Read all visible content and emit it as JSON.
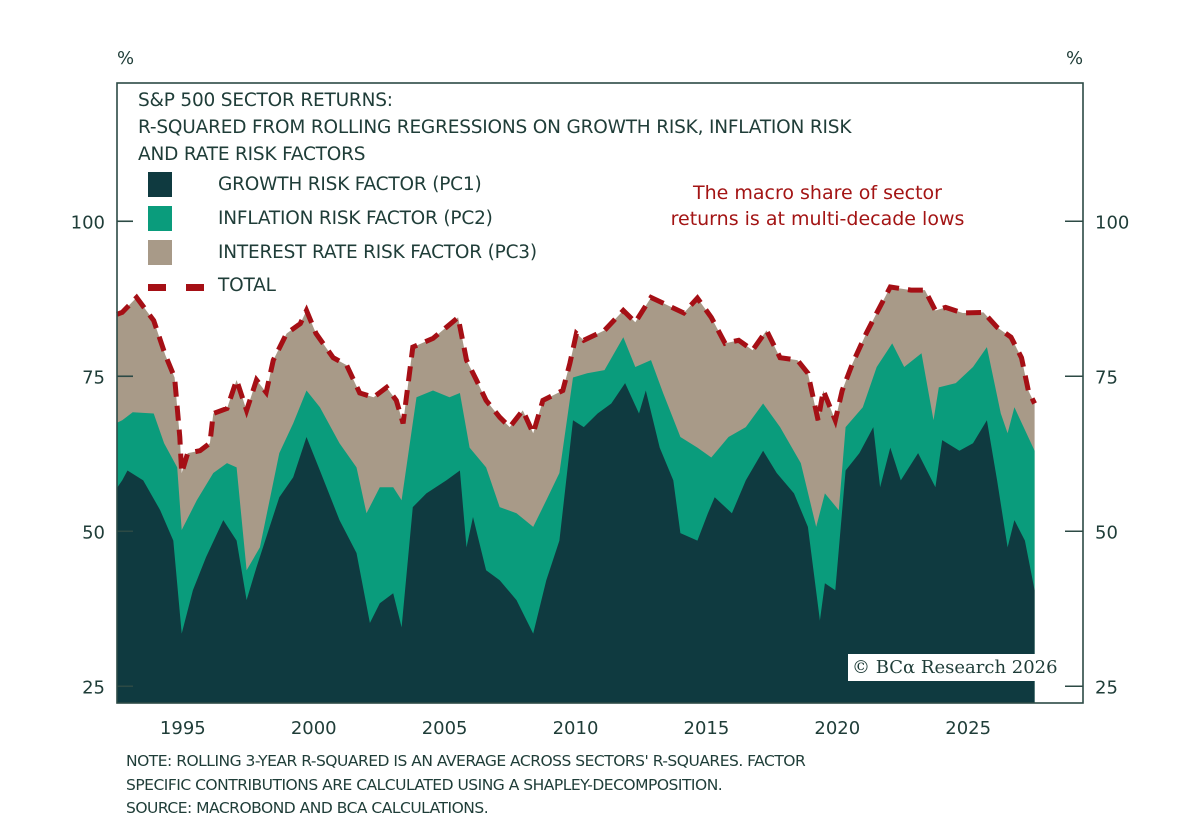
{
  "chart_data": {
    "type": "area",
    "stacked": true,
    "title_lines": [
      "S&P 500 SECTOR RETURNS:",
      "R-SQUARED FROM ROLLING REGRESSIONS ON GROWTH RISK, INFLATION RISK",
      "AND RATE RISK FACTORS"
    ],
    "ylabel_left": "%",
    "ylabel_right": "%",
    "ylim": [
      22.3,
      122.3
    ],
    "xlim": [
      1992.6,
      2029.5
    ],
    "yticks": [
      25,
      50,
      75,
      100
    ],
    "xticks": [
      1995,
      2000,
      2005,
      2010,
      2015,
      2020,
      2025
    ],
    "grid": false,
    "legend_placement": "top-left",
    "annotation": [
      "The macro share of sector",
      "returns is at multi-decade lows"
    ],
    "copyright": "© BCα Research 2026",
    "value_note": "points are [year, cumulative stacked level in %]",
    "series": [
      {
        "name": "GROWTH RISK FACTOR (PC1)",
        "color": "#0f3a40",
        "kind": "area",
        "points": [
          [
            1992.6,
            57
          ],
          [
            1992.8,
            58.2
          ],
          [
            1993.0,
            59.8
          ],
          [
            1993.6,
            58.2
          ],
          [
            1994.25,
            53.4
          ],
          [
            1994.75,
            48.5
          ],
          [
            1995.07,
            33.5
          ],
          [
            1995.5,
            40.5
          ],
          [
            1996.0,
            45.8
          ],
          [
            1996.66,
            51.8
          ],
          [
            1997.17,
            48.5
          ],
          [
            1997.55,
            38.9
          ],
          [
            1997.93,
            44.2
          ],
          [
            1998.8,
            55.5
          ],
          [
            1999.33,
            58.7
          ],
          [
            1999.84,
            65.2
          ],
          [
            2000.35,
            59.8
          ],
          [
            2001.1,
            51.8
          ],
          [
            2001.75,
            46.5
          ],
          [
            2002.26,
            35.2
          ],
          [
            2002.64,
            38.4
          ],
          [
            2003.15,
            40
          ],
          [
            2003.47,
            34.5
          ],
          [
            2003.9,
            53.9
          ],
          [
            2004.42,
            56.1
          ],
          [
            2005.18,
            58.2
          ],
          [
            2005.7,
            59.8
          ],
          [
            2005.95,
            47.4
          ],
          [
            2006.2,
            52.3
          ],
          [
            2006.7,
            43.7
          ],
          [
            2007.22,
            42.1
          ],
          [
            2007.86,
            38.9
          ],
          [
            2008.5,
            33.5
          ],
          [
            2009.0,
            42.1
          ],
          [
            2009.5,
            48.5
          ],
          [
            2010.02,
            67.9
          ],
          [
            2010.43,
            66.8
          ],
          [
            2010.96,
            69
          ],
          [
            2011.48,
            70.6
          ],
          [
            2012.01,
            73.9
          ],
          [
            2012.54,
            69
          ],
          [
            2012.8,
            72.7
          ],
          [
            2013.33,
            63.5
          ],
          [
            2013.85,
            58.2
          ],
          [
            2014.12,
            49.7
          ],
          [
            2014.77,
            48.5
          ],
          [
            2015.17,
            52.9
          ],
          [
            2015.43,
            55.5
          ],
          [
            2016.09,
            52.9
          ],
          [
            2016.62,
            58.2
          ],
          [
            2017.28,
            63
          ],
          [
            2017.8,
            59.4
          ],
          [
            2018.46,
            56.1
          ],
          [
            2018.99,
            50.7
          ],
          [
            2019.45,
            35.6
          ],
          [
            2019.64,
            41.6
          ],
          [
            2020.04,
            40.5
          ],
          [
            2020.43,
            59.8
          ],
          [
            2020.96,
            62.6
          ],
          [
            2021.49,
            66.8
          ],
          [
            2021.75,
            57.1
          ],
          [
            2022.14,
            63.5
          ],
          [
            2022.54,
            58.2
          ],
          [
            2023.2,
            62.6
          ],
          [
            2023.86,
            57.1
          ],
          [
            2024.12,
            64.7
          ],
          [
            2024.78,
            63
          ],
          [
            2025.3,
            64.2
          ],
          [
            2025.83,
            67.9
          ],
          [
            2026.22,
            58.2
          ],
          [
            2026.62,
            47.4
          ],
          [
            2026.88,
            51.8
          ],
          [
            2027.28,
            48.5
          ],
          [
            2027.65,
            40.5
          ]
        ]
      },
      {
        "name": "INFLATION RISK FACTOR (PC2)",
        "color": "#0a9c7c",
        "kind": "area",
        "points": [
          [
            1992.6,
            67.5
          ],
          [
            1992.8,
            67.9
          ],
          [
            1993.2,
            69.2
          ],
          [
            1994.0,
            69
          ],
          [
            1994.4,
            64.2
          ],
          [
            1994.9,
            60.3
          ],
          [
            1995.07,
            50.2
          ],
          [
            1995.65,
            55
          ],
          [
            1996.28,
            59.4
          ],
          [
            1996.8,
            61
          ],
          [
            1997.17,
            60.3
          ],
          [
            1997.55,
            43.7
          ],
          [
            1998.06,
            47.4
          ],
          [
            1998.8,
            62.6
          ],
          [
            1999.33,
            67.4
          ],
          [
            1999.84,
            72.7
          ],
          [
            2000.35,
            70
          ],
          [
            2001.1,
            64.2
          ],
          [
            2001.75,
            60.3
          ],
          [
            2002.13,
            52.9
          ],
          [
            2002.64,
            57.1
          ],
          [
            2003.15,
            57.1
          ],
          [
            2003.47,
            55
          ],
          [
            2004.04,
            71.6
          ],
          [
            2004.67,
            72.7
          ],
          [
            2005.3,
            71.6
          ],
          [
            2005.7,
            72.3
          ],
          [
            2006.07,
            63.5
          ],
          [
            2006.7,
            60.3
          ],
          [
            2007.22,
            53.9
          ],
          [
            2007.86,
            52.9
          ],
          [
            2008.5,
            50.7
          ],
          [
            2009.0,
            55
          ],
          [
            2009.5,
            59.4
          ],
          [
            2010.02,
            74.8
          ],
          [
            2010.56,
            75.5
          ],
          [
            2011.22,
            76
          ],
          [
            2011.94,
            81.3
          ],
          [
            2012.4,
            76.5
          ],
          [
            2013.0,
            77.6
          ],
          [
            2013.46,
            72.3
          ],
          [
            2014.12,
            65.2
          ],
          [
            2014.77,
            63.5
          ],
          [
            2015.3,
            61.9
          ],
          [
            2015.96,
            65.2
          ],
          [
            2016.62,
            66.8
          ],
          [
            2017.28,
            70.6
          ],
          [
            2017.93,
            66.8
          ],
          [
            2018.72,
            61
          ],
          [
            2019.31,
            50.7
          ],
          [
            2019.64,
            56.1
          ],
          [
            2020.17,
            53.4
          ],
          [
            2020.43,
            66.8
          ],
          [
            2021.09,
            70
          ],
          [
            2021.62,
            76.5
          ],
          [
            2022.21,
            80.3
          ],
          [
            2022.67,
            76.5
          ],
          [
            2023.33,
            78.7
          ],
          [
            2023.79,
            67.9
          ],
          [
            2023.99,
            73.2
          ],
          [
            2024.64,
            73.9
          ],
          [
            2025.3,
            76.5
          ],
          [
            2025.83,
            79.7
          ],
          [
            2026.36,
            69
          ],
          [
            2026.62,
            65.8
          ],
          [
            2026.88,
            70
          ],
          [
            2027.65,
            63
          ]
        ]
      },
      {
        "name": "INTEREST RATE RISK FACTOR (PC3)",
        "color": "#a89a88",
        "kind": "area",
        "points": "same as TOTAL"
      },
      {
        "name": "TOTAL",
        "color": "#a50f15",
        "kind": "dashed-line",
        "points": [
          [
            1992.6,
            85
          ],
          [
            1992.8,
            85.3
          ],
          [
            1993.35,
            87.7
          ],
          [
            1994.0,
            84
          ],
          [
            1994.45,
            78.4
          ],
          [
            1994.8,
            74.8
          ],
          [
            1995.0,
            65.2
          ],
          [
            1995.07,
            59.4
          ],
          [
            1995.3,
            62.6
          ],
          [
            1995.77,
            63
          ],
          [
            1996.15,
            64.2
          ],
          [
            1996.28,
            69
          ],
          [
            1996.8,
            69.8
          ],
          [
            1997.17,
            74.4
          ],
          [
            1997.55,
            69.5
          ],
          [
            1997.93,
            74.4
          ],
          [
            1998.3,
            72.4
          ],
          [
            1998.57,
            77.6
          ],
          [
            1999.08,
            81.9
          ],
          [
            1999.6,
            83.5
          ],
          [
            1999.84,
            85.6
          ],
          [
            2000.2,
            81.9
          ],
          [
            2000.86,
            78
          ],
          [
            2001.37,
            76.8
          ],
          [
            2001.87,
            72.3
          ],
          [
            2002.4,
            71.6
          ],
          [
            2002.9,
            73.2
          ],
          [
            2003.27,
            71.1
          ],
          [
            2003.53,
            67.4
          ],
          [
            2003.9,
            79.7
          ],
          [
            2004.67,
            81.1
          ],
          [
            2005.18,
            82.9
          ],
          [
            2005.63,
            84.5
          ],
          [
            2005.95,
            77.6
          ],
          [
            2006.33,
            74.4
          ],
          [
            2006.7,
            71.1
          ],
          [
            2007.22,
            68.4
          ],
          [
            2007.6,
            66.8
          ],
          [
            2008.1,
            69.5
          ],
          [
            2008.5,
            65.8
          ],
          [
            2008.87,
            71.1
          ],
          [
            2009.63,
            72.7
          ],
          [
            2009.9,
            77.1
          ],
          [
            2010.15,
            81.9
          ],
          [
            2010.43,
            80.8
          ],
          [
            2011.22,
            82.4
          ],
          [
            2011.94,
            85.6
          ],
          [
            2012.4,
            83.7
          ],
          [
            2013.0,
            87.7
          ],
          [
            2013.46,
            86.8
          ],
          [
            2014.25,
            85.2
          ],
          [
            2014.77,
            87.6
          ],
          [
            2015.3,
            84.5
          ],
          [
            2015.83,
            80.3
          ],
          [
            2016.35,
            80.8
          ],
          [
            2016.88,
            79.2
          ],
          [
            2017.41,
            82.4
          ],
          [
            2017.93,
            78
          ],
          [
            2018.59,
            77.6
          ],
          [
            2018.99,
            75.5
          ],
          [
            2019.38,
            67.9
          ],
          [
            2019.58,
            72.7
          ],
          [
            2020.04,
            67.9
          ],
          [
            2020.3,
            72.7
          ],
          [
            2020.7,
            77.1
          ],
          [
            2021.22,
            81.9
          ],
          [
            2021.62,
            85.2
          ],
          [
            2022.14,
            89.4
          ],
          [
            2022.93,
            88.9
          ],
          [
            2023.46,
            88.9
          ],
          [
            2023.86,
            85.6
          ],
          [
            2024.25,
            86.1
          ],
          [
            2024.91,
            85.2
          ],
          [
            2025.7,
            85.3
          ],
          [
            2026.22,
            82.9
          ],
          [
            2026.75,
            81.3
          ],
          [
            2027.15,
            78
          ],
          [
            2027.41,
            72.7
          ],
          [
            2027.65,
            70.6
          ]
        ]
      }
    ]
  },
  "notes": [
    "NOTE: ROLLING 3-YEAR R-SQUARED IS AN AVERAGE ACROSS SECTORS' R-SQUARES. FACTOR",
    "SPECIFIC CONTRIBUTIONS ARE CALCULATED USING A SHAPLEY-DECOMPOSITION.",
    "SOURCE: MACROBOND AND BCA CALCULATIONS."
  ]
}
